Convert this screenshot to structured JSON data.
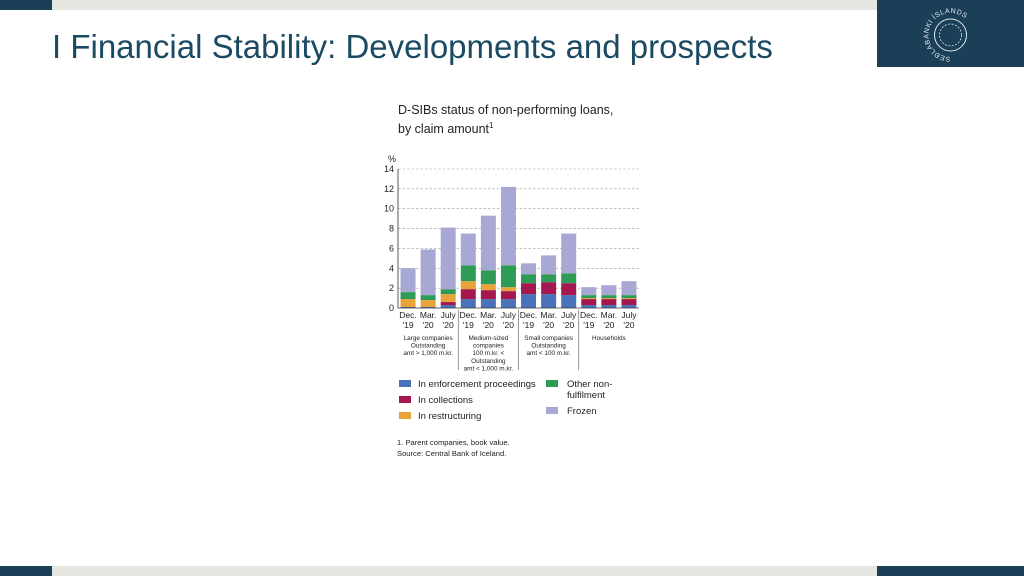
{
  "header": {
    "title": "I Financial Stability: Developments and prospects"
  },
  "logo": {
    "icon": "central-bank-seal-icon",
    "ring_text": "SEÐLABANKI ÍSLANDS"
  },
  "chart_data": {
    "type": "bar",
    "stacked": true,
    "title_lines": [
      "D-SIBs status of non-performing loans,",
      "by claim amount"
    ],
    "title_footnote": "1",
    "y_unit": "%",
    "ylim": [
      0,
      14
    ],
    "yticks": [
      0,
      2,
      4,
      6,
      8,
      10,
      12,
      14
    ],
    "grid": "dashed horizontal",
    "categories": [
      [
        "Dec.",
        "'19"
      ],
      [
        "Mar.",
        "'20"
      ],
      [
        "July",
        "'20"
      ],
      [
        "Dec.",
        "'19"
      ],
      [
        "Mar.",
        "'20"
      ],
      [
        "July",
        "'20"
      ],
      [
        "Dec.",
        "'19"
      ],
      [
        "Mar.",
        "'20"
      ],
      [
        "July",
        "'20"
      ],
      [
        "Dec.",
        "'19"
      ],
      [
        "Mar.",
        "'20"
      ],
      [
        "July",
        "'20"
      ]
    ],
    "groups": [
      {
        "label_lines": [
          "Large companies",
          "Outstanding",
          "amt > 1,000 m.kr."
        ]
      },
      {
        "label_lines": [
          "Medium-sized",
          "companies",
          "100 m.kr. <",
          "Outstanding",
          "amt < 1,000 m.kr."
        ]
      },
      {
        "label_lines": [
          "Small companies",
          "Outstanding",
          "amt < 100 m.kr."
        ]
      },
      {
        "label_lines": [
          "Households"
        ]
      }
    ],
    "series": [
      {
        "name": "In enforcement proceedings",
        "color": "#4a72b8",
        "values": [
          0.1,
          0.1,
          0.3,
          0.9,
          0.9,
          0.9,
          1.4,
          1.4,
          1.3,
          0.3,
          0.3,
          0.3
        ]
      },
      {
        "name": "In collections",
        "color": "#a6174f",
        "values": [
          0.0,
          0.0,
          0.3,
          1.0,
          0.9,
          0.8,
          1.1,
          1.2,
          1.2,
          0.6,
          0.6,
          0.6
        ]
      },
      {
        "name": "In restructuring",
        "color": "#e8a33a",
        "values": [
          0.8,
          0.7,
          0.8,
          0.8,
          0.6,
          0.4,
          0.0,
          0.0,
          0.0,
          0.1,
          0.1,
          0.1
        ]
      },
      {
        "name": "Other non-fulfilment",
        "color": "#2e9b57",
        "values": [
          0.7,
          0.5,
          0.5,
          1.6,
          1.4,
          2.2,
          0.9,
          0.8,
          1.0,
          0.3,
          0.3,
          0.3
        ]
      },
      {
        "name": "Frozen",
        "color": "#a8a8d4",
        "values": [
          2.4,
          4.6,
          6.2,
          3.2,
          5.5,
          7.9,
          1.1,
          1.9,
          4.0,
          0.8,
          1.0,
          1.4
        ]
      }
    ],
    "legend_left": [
      "In enforcement proceedings",
      "In collections",
      "In restructuring"
    ],
    "legend_right": [
      "Other non-fulfilment",
      "Frozen"
    ],
    "legend_right_lines": [
      [
        "Other non-",
        "fulfilment"
      ],
      [
        "Frozen"
      ]
    ],
    "legend_placement": "bottom",
    "footnote": "1. Parent companies, book value.",
    "source": "Source: Central Bank of Iceland."
  }
}
